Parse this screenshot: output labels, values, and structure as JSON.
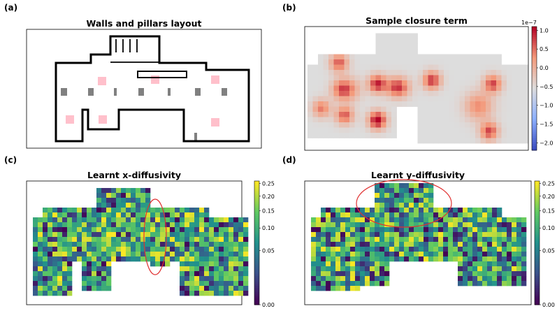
{
  "panels": {
    "a": {
      "label": "(a)",
      "title": "Walls and pillars layout"
    },
    "b": {
      "label": "(b)",
      "title": "Sample closure term",
      "colorbar": {
        "exponent": "1e−7",
        "ticks": [
          "1.0",
          "0.5",
          "0.0",
          "−0.5",
          "−1.0",
          "−1.5",
          "−2.0"
        ],
        "tick_values": [
          1.0,
          0.5,
          0.0,
          -0.5,
          -1.0,
          -1.5,
          -2.0
        ],
        "range": [
          -2.2,
          1.1
        ],
        "colormap": "coolwarm"
      }
    },
    "c": {
      "label": "(c)",
      "title": "Learnt x-diffusivity",
      "colorbar": {
        "ticks": [
          "0.25",
          "0.20",
          "0.15",
          "0.10",
          "0.05",
          "0.00"
        ],
        "tick_values": [
          0.25,
          0.2,
          0.15,
          0.1,
          0.05,
          0.0
        ],
        "colormap": "viridis"
      }
    },
    "d": {
      "label": "(d)",
      "title": "Learnt y-diffusivity",
      "colorbar": {
        "ticks": [
          "0.25",
          "0.20",
          "0.15",
          "0.10",
          "0.05",
          "0.00"
        ],
        "tick_values": [
          0.25,
          0.2,
          0.15,
          0.1,
          0.05,
          0.0
        ],
        "colormap": "viridis"
      }
    }
  },
  "colors": {
    "wall": "#000000",
    "pillar": "#808080",
    "marker": "#ffc0cb",
    "highlight": "#e03030"
  }
}
